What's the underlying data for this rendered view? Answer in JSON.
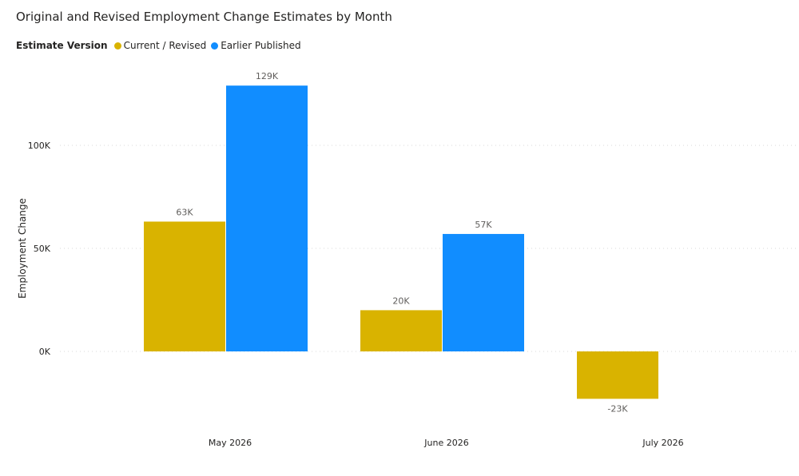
{
  "header": {
    "title": "Original and Revised Employment Change Estimates by Month"
  },
  "legend": {
    "title": "Estimate Version"
  },
  "chart_data": {
    "type": "bar",
    "title": "Original and Revised Employment Change Estimates by Month",
    "categories": [
      "May 2026",
      "June 2026",
      "July 2026"
    ],
    "series": [
      {
        "name": "Current / Revised",
        "color": "#d9b300",
        "values": [
          63,
          20,
          -23
        ],
        "labels": [
          "63K",
          "20K",
          "-23K"
        ]
      },
      {
        "name": "Earlier Published",
        "color": "#118dff",
        "values": [
          129,
          57,
          null
        ],
        "labels": [
          "129K",
          "57K",
          ""
        ]
      }
    ],
    "ylabel": "Employment Change",
    "yunit": "K",
    "ylim": [
      -38,
      145
    ],
    "yticks": [
      0,
      50,
      100
    ],
    "ytick_labels": [
      "0K",
      "50K",
      "100K"
    ],
    "grid": true,
    "legend_position": "top-left"
  }
}
